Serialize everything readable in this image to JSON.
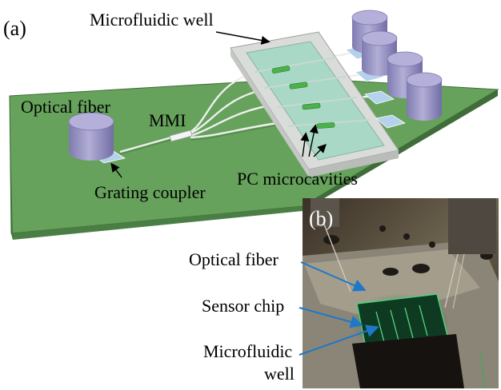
{
  "panel_a": {
    "tag": "(a)",
    "labels": {
      "microfluidic_well": "Microfluidic well",
      "optical_fiber": "Optical fiber",
      "mmi": "MMI",
      "grating_coupler": "Grating coupler",
      "pc_microcavities": "PC microcavities"
    }
  },
  "panel_b": {
    "tag": "(b)",
    "labels": {
      "optical_fiber": "Optical fiber",
      "sensor_chip": "Sensor chip",
      "microfluidic_line1": "Microfluidic",
      "microfluidic_line2": "well"
    }
  },
  "colors": {
    "board": "#66a25c",
    "board_side": "#4a7e44",
    "fiber": "#9a96c6",
    "well": "#d9dcd9",
    "well_inner": "#a9d7c6",
    "cavity": "#49b34a",
    "arrow_b": "#1e78c8"
  }
}
